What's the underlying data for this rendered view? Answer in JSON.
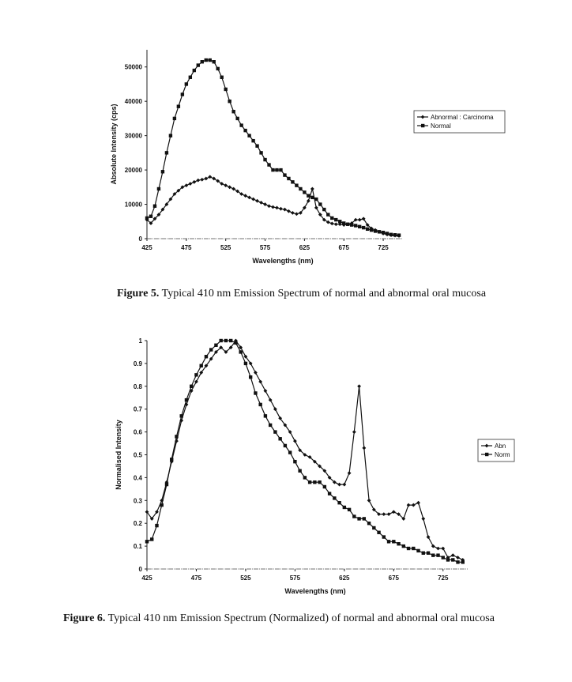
{
  "figure5": {
    "caption_label": "Figure 5.",
    "caption_text": " Typical 410 nm Emission Spectrum of normal and abnormal oral mucosa"
  },
  "figure6": {
    "caption_label": "Figure 6.",
    "caption_text": " Typical 410 nm Emission Spectrum (Normalized) of normal and abnormal oral mucosa"
  },
  "chart_data": [
    {
      "type": "line",
      "xlabel": "Wavelengths (nm)",
      "ylabel": "Absolute Intensity (cps)",
      "xlim": [
        425,
        750
      ],
      "ylim": [
        0,
        55000
      ],
      "x_ticks": [
        425,
        475,
        525,
        575,
        625,
        675,
        725
      ],
      "y_ticks": [
        0,
        10000,
        20000,
        30000,
        40000,
        50000
      ],
      "legend_position": "right",
      "grid": false,
      "series": [
        {
          "name": "Abnormal : Carcinoma",
          "marker": "diamond",
          "color": "#111111",
          "x": [
            425,
            430,
            435,
            440,
            445,
            450,
            455,
            460,
            465,
            470,
            475,
            480,
            485,
            490,
            495,
            500,
            505,
            510,
            515,
            520,
            525,
            530,
            535,
            540,
            545,
            550,
            555,
            560,
            565,
            570,
            575,
            580,
            585,
            590,
            595,
            600,
            605,
            610,
            615,
            620,
            625,
            630,
            635,
            640,
            645,
            650,
            655,
            660,
            665,
            670,
            675,
            680,
            685,
            690,
            695,
            700,
            705,
            710,
            715,
            720,
            725,
            730,
            735,
            740,
            745
          ],
          "values": [
            5500,
            4500,
            5800,
            7000,
            8500,
            10000,
            11500,
            13000,
            14000,
            15000,
            15500,
            16000,
            16500,
            17000,
            17200,
            17500,
            18000,
            17500,
            16800,
            16000,
            15500,
            15000,
            14500,
            13800,
            13000,
            12500,
            12000,
            11500,
            11000,
            10500,
            10000,
            9500,
            9200,
            9000,
            8700,
            8500,
            8000,
            7500,
            7200,
            7500,
            9000,
            11000,
            14500,
            9000,
            7000,
            5500,
            4800,
            4400,
            4200,
            4200,
            4000,
            4200,
            4500,
            5500,
            5500,
            5800,
            4000,
            3000,
            2500,
            2000,
            1500,
            1200,
            1000,
            900,
            800
          ]
        },
        {
          "name": "Normal",
          "marker": "square",
          "color": "#111111",
          "x": [
            425,
            430,
            435,
            440,
            445,
            450,
            455,
            460,
            465,
            470,
            475,
            480,
            485,
            490,
            495,
            500,
            505,
            510,
            515,
            520,
            525,
            530,
            535,
            540,
            545,
            550,
            555,
            560,
            565,
            570,
            575,
            580,
            585,
            590,
            595,
            600,
            605,
            610,
            615,
            620,
            625,
            630,
            635,
            640,
            645,
            650,
            655,
            660,
            665,
            670,
            675,
            680,
            685,
            690,
            695,
            700,
            705,
            710,
            715,
            720,
            725,
            730,
            735,
            740,
            745
          ],
          "values": [
            6000,
            6500,
            9500,
            14500,
            19500,
            25000,
            30000,
            35000,
            38500,
            42000,
            45000,
            47000,
            49000,
            50500,
            51500,
            52000,
            52000,
            51500,
            49500,
            47000,
            43500,
            40000,
            37000,
            35000,
            33000,
            31500,
            30000,
            28500,
            27000,
            25000,
            23000,
            21500,
            20000,
            20000,
            20000,
            18500,
            17500,
            16500,
            15500,
            14500,
            13500,
            12500,
            12000,
            11500,
            10000,
            8500,
            7000,
            6000,
            5500,
            5000,
            4500,
            4200,
            4000,
            3800,
            3500,
            3200,
            2800,
            2500,
            2200,
            2000,
            1800,
            1500,
            1200,
            1100,
            1000
          ]
        }
      ]
    },
    {
      "type": "line",
      "xlabel": "Wavelengths (nm)",
      "ylabel": "Normalised Intensity",
      "xlim": [
        425,
        750
      ],
      "ylim": [
        0,
        1
      ],
      "x_ticks": [
        425,
        475,
        525,
        575,
        625,
        675,
        725
      ],
      "y_ticks": [
        0,
        0.1,
        0.2,
        0.3,
        0.4,
        0.5,
        0.6,
        0.7,
        0.8,
        0.9,
        1
      ],
      "legend_position": "right",
      "grid": false,
      "series": [
        {
          "name": "Abn",
          "marker": "diamond",
          "color": "#111111",
          "x": [
            425,
            430,
            435,
            440,
            445,
            450,
            455,
            460,
            465,
            470,
            475,
            480,
            485,
            490,
            495,
            500,
            505,
            510,
            515,
            520,
            525,
            530,
            535,
            540,
            545,
            550,
            555,
            560,
            565,
            570,
            575,
            580,
            585,
            590,
            595,
            600,
            605,
            610,
            615,
            620,
            625,
            630,
            635,
            640,
            645,
            650,
            655,
            660,
            665,
            670,
            675,
            680,
            685,
            690,
            695,
            700,
            705,
            710,
            715,
            720,
            725,
            730,
            735,
            740,
            745
          ],
          "values": [
            0.25,
            0.22,
            0.25,
            0.3,
            0.38,
            0.47,
            0.56,
            0.65,
            0.72,
            0.78,
            0.82,
            0.86,
            0.89,
            0.92,
            0.95,
            0.97,
            0.95,
            0.97,
            1.0,
            0.97,
            0.93,
            0.9,
            0.86,
            0.82,
            0.78,
            0.74,
            0.7,
            0.66,
            0.63,
            0.6,
            0.56,
            0.52,
            0.5,
            0.49,
            0.47,
            0.45,
            0.43,
            0.4,
            0.38,
            0.37,
            0.37,
            0.42,
            0.6,
            0.8,
            0.53,
            0.3,
            0.26,
            0.24,
            0.24,
            0.24,
            0.25,
            0.24,
            0.22,
            0.28,
            0.28,
            0.29,
            0.22,
            0.14,
            0.1,
            0.09,
            0.09,
            0.05,
            0.06,
            0.05,
            0.04
          ]
        },
        {
          "name": "Norm",
          "marker": "square",
          "color": "#111111",
          "x": [
            425,
            430,
            435,
            440,
            445,
            450,
            455,
            460,
            465,
            470,
            475,
            480,
            485,
            490,
            495,
            500,
            505,
            510,
            515,
            520,
            525,
            530,
            535,
            540,
            545,
            550,
            555,
            560,
            565,
            570,
            575,
            580,
            585,
            590,
            595,
            600,
            605,
            610,
            615,
            620,
            625,
            630,
            635,
            640,
            645,
            650,
            655,
            660,
            665,
            670,
            675,
            680,
            685,
            690,
            695,
            700,
            705,
            710,
            715,
            720,
            725,
            730,
            735,
            740,
            745
          ],
          "values": [
            0.12,
            0.13,
            0.19,
            0.28,
            0.37,
            0.48,
            0.58,
            0.67,
            0.74,
            0.8,
            0.85,
            0.89,
            0.93,
            0.96,
            0.98,
            1.0,
            1.0,
            1.0,
            0.99,
            0.95,
            0.9,
            0.84,
            0.77,
            0.72,
            0.67,
            0.63,
            0.6,
            0.57,
            0.54,
            0.51,
            0.47,
            0.43,
            0.4,
            0.38,
            0.38,
            0.38,
            0.36,
            0.33,
            0.31,
            0.29,
            0.27,
            0.26,
            0.23,
            0.22,
            0.22,
            0.2,
            0.18,
            0.16,
            0.14,
            0.12,
            0.12,
            0.11,
            0.1,
            0.09,
            0.09,
            0.08,
            0.07,
            0.07,
            0.06,
            0.06,
            0.05,
            0.04,
            0.04,
            0.03,
            0.03
          ]
        }
      ]
    }
  ]
}
